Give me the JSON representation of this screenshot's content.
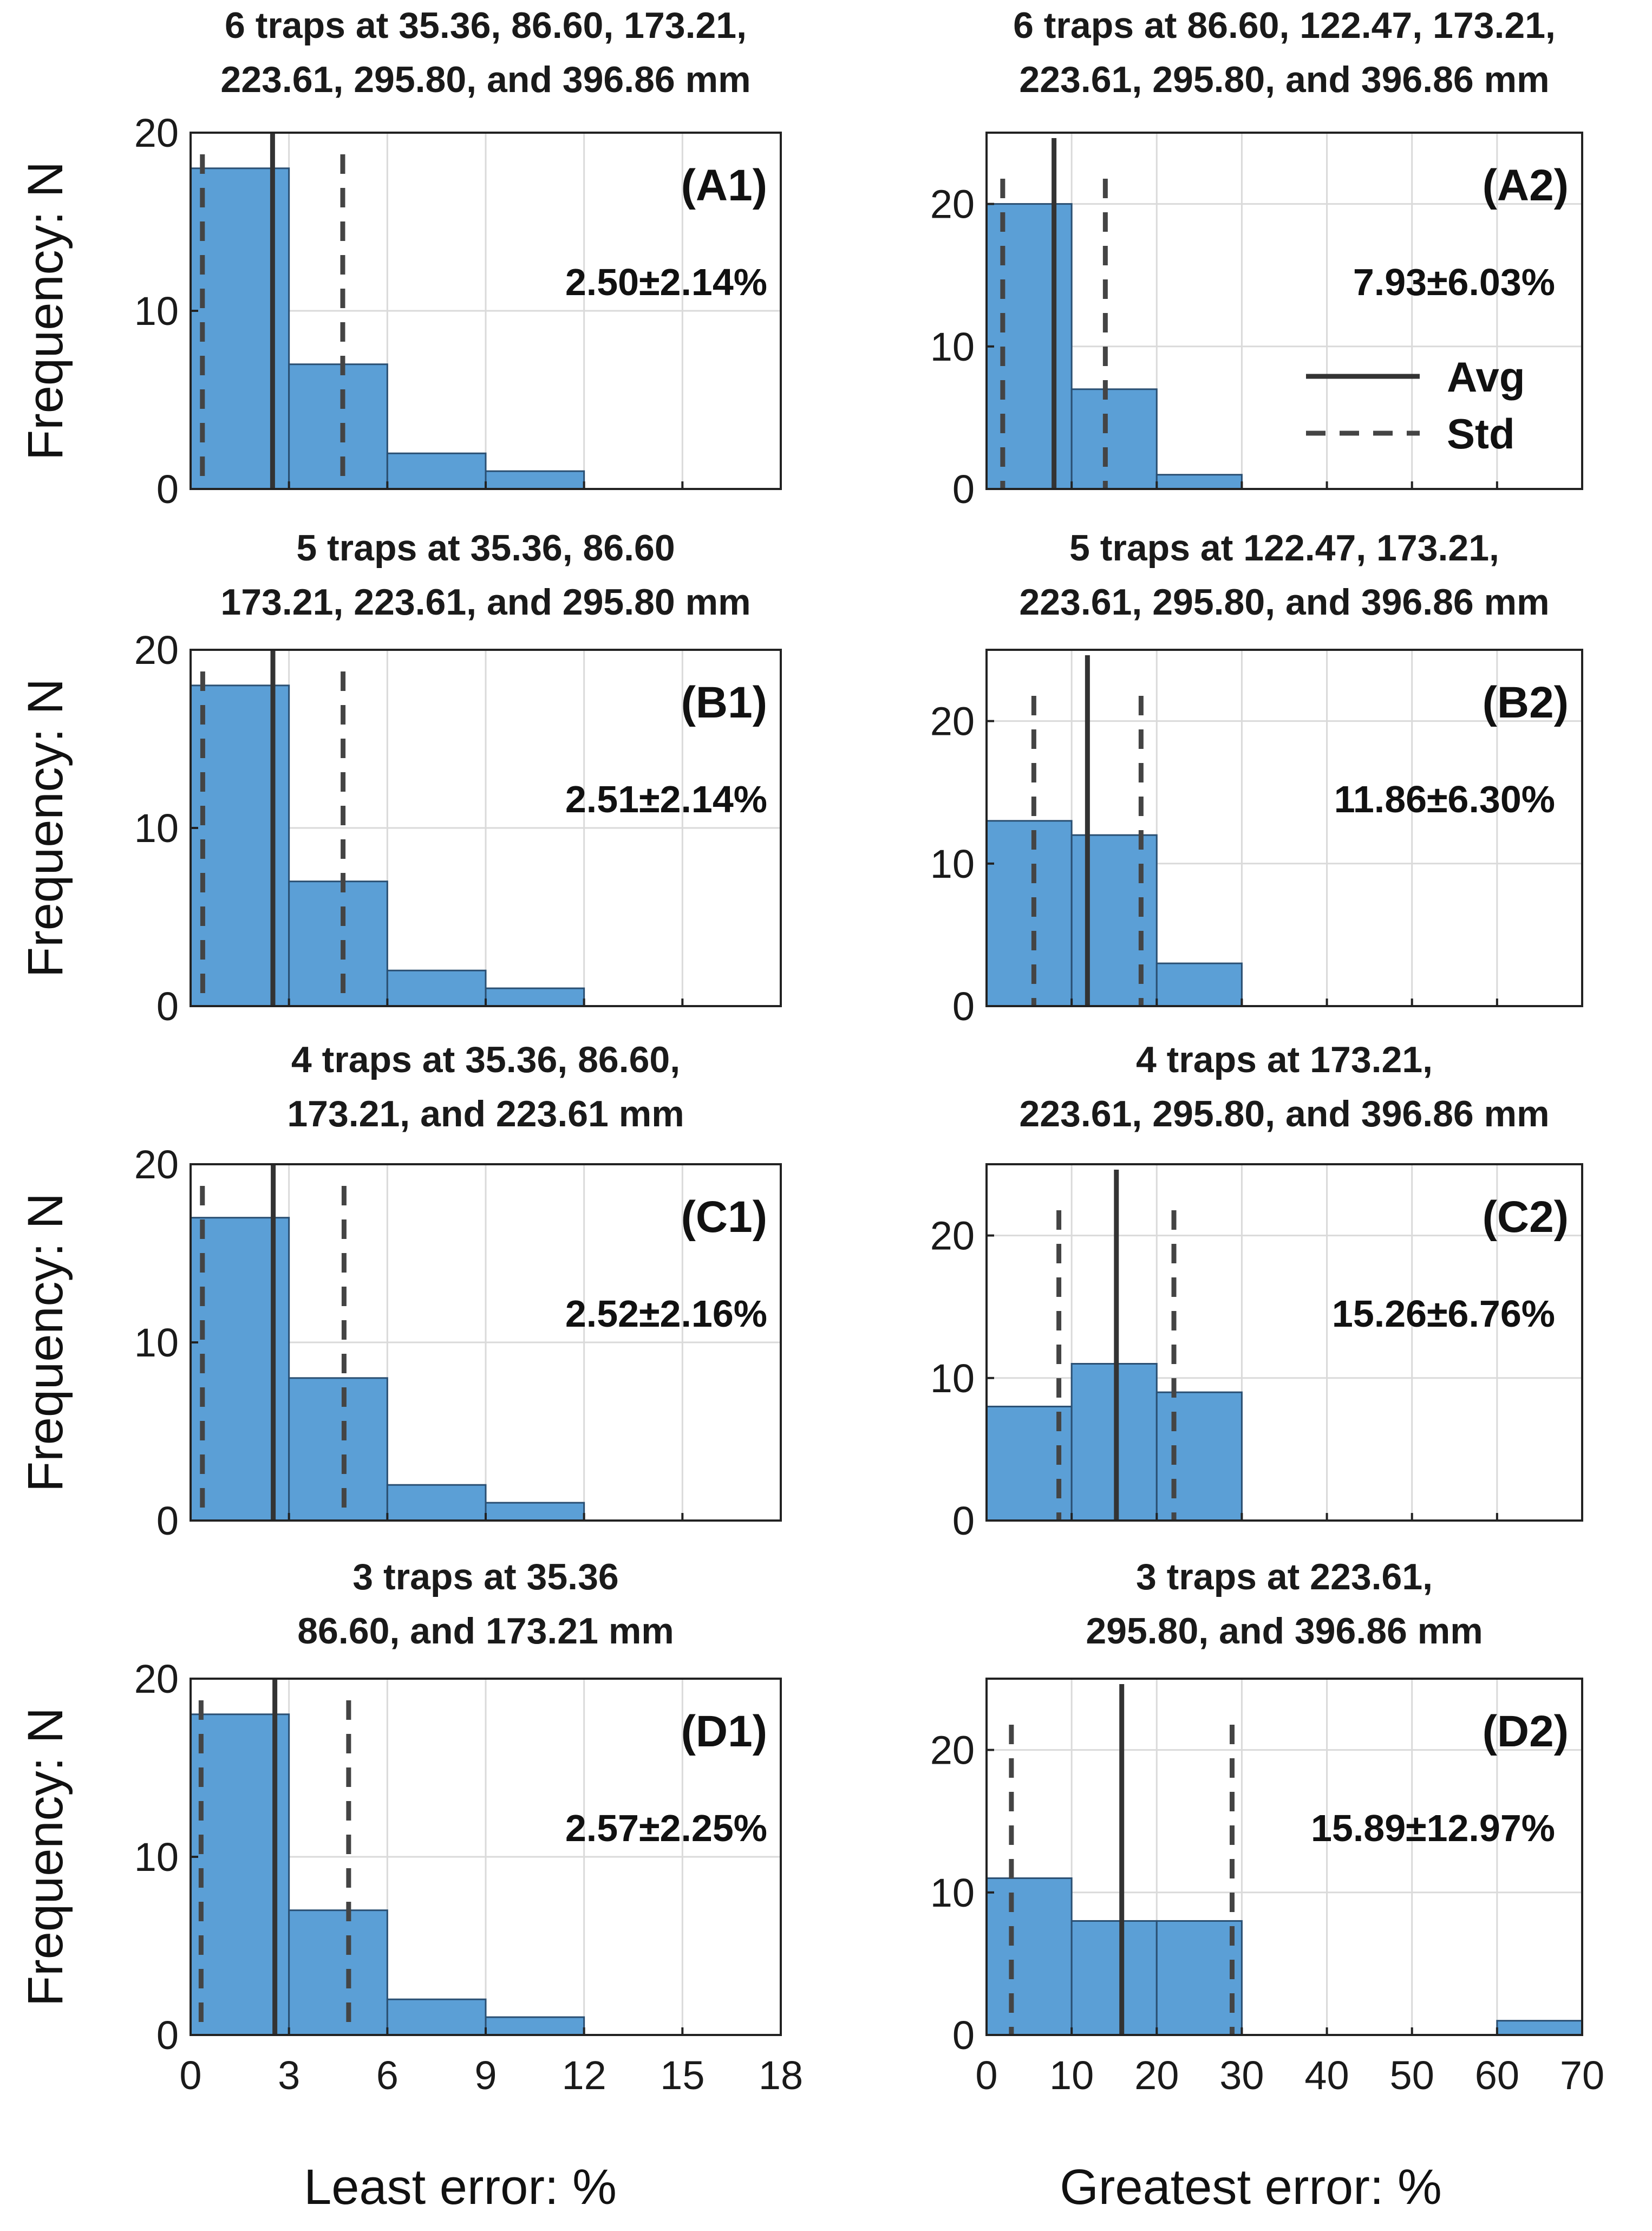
{
  "figure": {
    "ylabel": "Frequency: N",
    "xlabel_left": "Least error: %",
    "xlabel_right": "Greatest error: %",
    "bar_color": "#5b9fd6",
    "legend": {
      "avg": "Avg",
      "std": "Std"
    }
  },
  "chart_data": [
    {
      "type": "bar",
      "id": "A1",
      "tag": "(A1)",
      "title_lines": [
        "6 traps at 35.36, 86.60, 173.21,",
        "223.61, 295.80, and 396.86 mm"
      ],
      "stat_label": "2.50±2.14%",
      "bin_edges": [
        0,
        3,
        6,
        9,
        12
      ],
      "values": [
        18,
        7,
        2,
        1
      ],
      "avg": 2.5,
      "std_lines": [
        0.36,
        4.64
      ],
      "xlim": [
        0,
        18
      ],
      "ylim": [
        0,
        20
      ],
      "xticks": [
        0,
        3,
        6,
        9,
        12,
        15,
        18
      ],
      "yticks": [
        0,
        10,
        20
      ],
      "show_xticklabels": false
    },
    {
      "type": "bar",
      "id": "A2",
      "tag": "(A2)",
      "title_lines": [
        "6 traps at 86.60, 122.47, 173.21,",
        "223.61, 295.80, and 396.86 mm"
      ],
      "stat_label": "7.93±6.03%",
      "bin_edges": [
        0,
        10,
        20,
        30
      ],
      "values": [
        20,
        7,
        1
      ],
      "avg": 7.93,
      "std_lines": [
        1.9,
        13.96
      ],
      "xlim": [
        0,
        70
      ],
      "ylim": [
        0,
        25
      ],
      "xticks": [
        0,
        10,
        20,
        30,
        40,
        50,
        60,
        70
      ],
      "yticks": [
        0,
        10,
        20
      ],
      "show_xticklabels": false,
      "legend": true
    },
    {
      "type": "bar",
      "id": "B1",
      "tag": "(B1)",
      "title_lines": [
        "5 traps at 35.36, 86.60",
        "173.21, 223.61, and 295.80 mm"
      ],
      "stat_label": "2.51±2.14%",
      "bin_edges": [
        0,
        3,
        6,
        9,
        12
      ],
      "values": [
        18,
        7,
        2,
        1
      ],
      "avg": 2.51,
      "std_lines": [
        0.37,
        4.65
      ],
      "xlim": [
        0,
        18
      ],
      "ylim": [
        0,
        20
      ],
      "xticks": [
        0,
        3,
        6,
        9,
        12,
        15,
        18
      ],
      "yticks": [
        0,
        10,
        20
      ],
      "show_xticklabels": false
    },
    {
      "type": "bar",
      "id": "B2",
      "tag": "(B2)",
      "title_lines": [
        "5 traps at 122.47, 173.21,",
        "223.61, 295.80, and 396.86 mm"
      ],
      "stat_label": "11.86±6.30%",
      "bin_edges": [
        0,
        10,
        20,
        30
      ],
      "values": [
        13,
        12,
        3
      ],
      "avg": 11.86,
      "std_lines": [
        5.56,
        18.16
      ],
      "xlim": [
        0,
        70
      ],
      "ylim": [
        0,
        25
      ],
      "xticks": [
        0,
        10,
        20,
        30,
        40,
        50,
        60,
        70
      ],
      "yticks": [
        0,
        10,
        20
      ],
      "show_xticklabels": false
    },
    {
      "type": "bar",
      "id": "C1",
      "tag": "(C1)",
      "title_lines": [
        "4 traps at 35.36, 86.60,",
        "173.21, and 223.61 mm"
      ],
      "stat_label": "2.52±2.16%",
      "bin_edges": [
        0,
        3,
        6,
        9,
        12
      ],
      "values": [
        17,
        8,
        2,
        1
      ],
      "avg": 2.52,
      "std_lines": [
        0.36,
        4.68
      ],
      "xlim": [
        0,
        18
      ],
      "ylim": [
        0,
        20
      ],
      "xticks": [
        0,
        3,
        6,
        9,
        12,
        15,
        18
      ],
      "yticks": [
        0,
        10,
        20
      ],
      "show_xticklabels": false
    },
    {
      "type": "bar",
      "id": "C2",
      "tag": "(C2)",
      "title_lines": [
        "4 traps at 173.21,",
        "223.61, 295.80, and 396.86 mm"
      ],
      "stat_label": "15.26±6.76%",
      "bin_edges": [
        0,
        10,
        20,
        30
      ],
      "values": [
        8,
        11,
        9
      ],
      "avg": 15.26,
      "std_lines": [
        8.5,
        22.02
      ],
      "xlim": [
        0,
        70
      ],
      "ylim": [
        0,
        25
      ],
      "xticks": [
        0,
        10,
        20,
        30,
        40,
        50,
        60,
        70
      ],
      "yticks": [
        0,
        10,
        20
      ],
      "show_xticklabels": false
    },
    {
      "type": "bar",
      "id": "D1",
      "tag": "(D1)",
      "title_lines": [
        "3 traps at 35.36",
        "86.60, and 173.21 mm"
      ],
      "stat_label": "2.57±2.25%",
      "bin_edges": [
        0,
        3,
        6,
        9,
        12
      ],
      "values": [
        18,
        7,
        2,
        1
      ],
      "avg": 2.57,
      "std_lines": [
        0.32,
        4.82
      ],
      "xlim": [
        0,
        18
      ],
      "ylim": [
        0,
        20
      ],
      "xticks": [
        0,
        3,
        6,
        9,
        12,
        15,
        18
      ],
      "yticks": [
        0,
        10,
        20
      ],
      "show_xticklabels": true
    },
    {
      "type": "bar",
      "id": "D2",
      "tag": "(D2)",
      "title_lines": [
        "3 traps at 223.61,",
        "295.80, and 396.86 mm"
      ],
      "stat_label": "15.89±12.97%",
      "bin_edges": [
        0,
        10,
        20,
        30,
        40,
        50,
        60,
        70
      ],
      "values": [
        11,
        8,
        8,
        0,
        0,
        0,
        1
      ],
      "avg": 15.89,
      "std_lines": [
        2.92,
        28.86
      ],
      "xlim": [
        0,
        70
      ],
      "ylim": [
        0,
        25
      ],
      "xticks": [
        0,
        10,
        20,
        30,
        40,
        50,
        60,
        70
      ],
      "yticks": [
        0,
        10,
        20
      ],
      "show_xticklabels": true
    }
  ]
}
